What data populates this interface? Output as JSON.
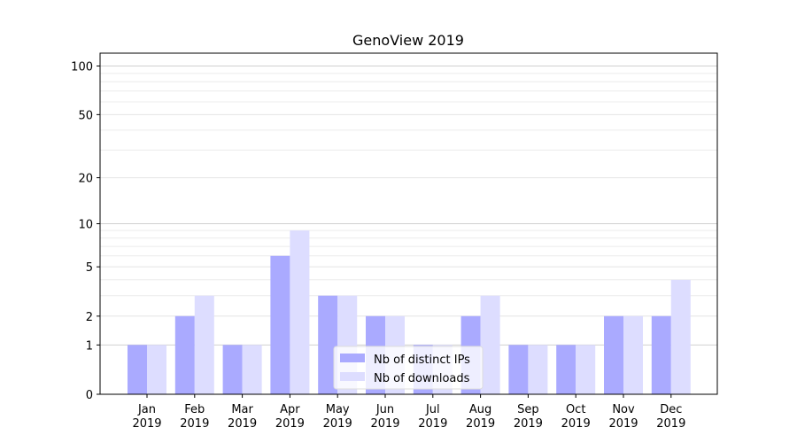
{
  "chart_data": {
    "type": "bar",
    "title": "GenoView 2019",
    "xlabel": "",
    "ylabel": "",
    "y_scale": "log-like (shifted by 1)",
    "ylim": [
      0,
      120
    ],
    "yticks": [
      0,
      1,
      2,
      5,
      10,
      20,
      50,
      100
    ],
    "ytick_labels": [
      "0",
      "1",
      "2",
      "5",
      "10",
      "20",
      "50",
      "100"
    ],
    "categories": [
      [
        "Jan",
        "2019"
      ],
      [
        "Feb",
        "2019"
      ],
      [
        "Mar",
        "2019"
      ],
      [
        "Apr",
        "2019"
      ],
      [
        "May",
        "2019"
      ],
      [
        "Jun",
        "2019"
      ],
      [
        "Jul",
        "2019"
      ],
      [
        "Aug",
        "2019"
      ],
      [
        "Sep",
        "2019"
      ],
      [
        "Oct",
        "2019"
      ],
      [
        "Nov",
        "2019"
      ],
      [
        "Dec",
        "2019"
      ]
    ],
    "series": [
      {
        "name": "Nb of distinct IPs",
        "color": "#aaaaff",
        "values": [
          1,
          2,
          1,
          6,
          3,
          2,
          1,
          2,
          1,
          1,
          2,
          2
        ]
      },
      {
        "name": "Nb of downloads",
        "color": "#ddddff",
        "values": [
          1,
          3,
          1,
          9,
          3,
          2,
          1,
          3,
          1,
          1,
          2,
          4
        ]
      }
    ],
    "legend_position": "bottom-center",
    "grid": "horizontal major and minor lines"
  }
}
